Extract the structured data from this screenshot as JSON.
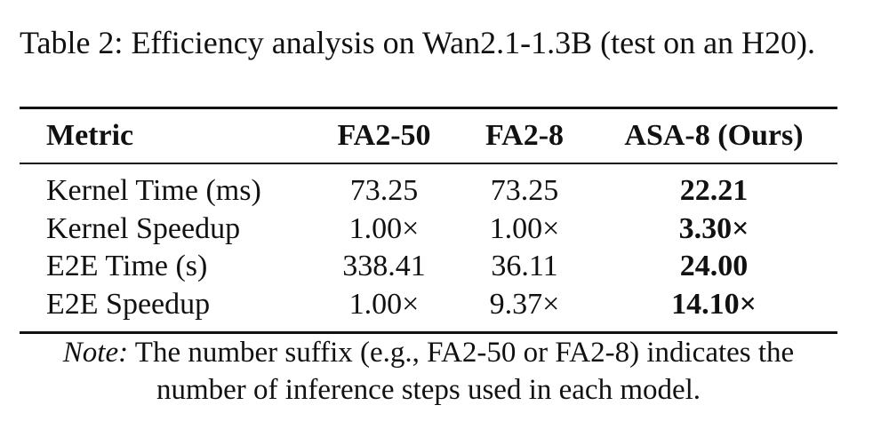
{
  "caption": "Table 2: Efficiency analysis on Wan2.1-1.3B (test on an H20).",
  "table": {
    "columns": [
      {
        "header": "Metric",
        "bold": false
      },
      {
        "header": "FA2-50",
        "bold": false
      },
      {
        "header": "FA2-8",
        "bold": false
      },
      {
        "header": "ASA-8 (Ours)",
        "bold": true
      }
    ],
    "rows": [
      [
        "Kernel Time (ms)",
        "73.25",
        "73.25",
        "22.21"
      ],
      [
        "Kernel Speedup",
        "1.00×",
        "1.00×",
        "3.30×"
      ],
      [
        "E2E Time (s)",
        "338.41",
        "36.11",
        "24.00"
      ],
      [
        "E2E Speedup",
        "1.00×",
        "9.37×",
        "14.10×"
      ]
    ]
  },
  "note": {
    "label": "Note:",
    "text": "The number suffix (e.g., FA2-50 or FA2-8) indicates the number of inference steps used in each model."
  }
}
